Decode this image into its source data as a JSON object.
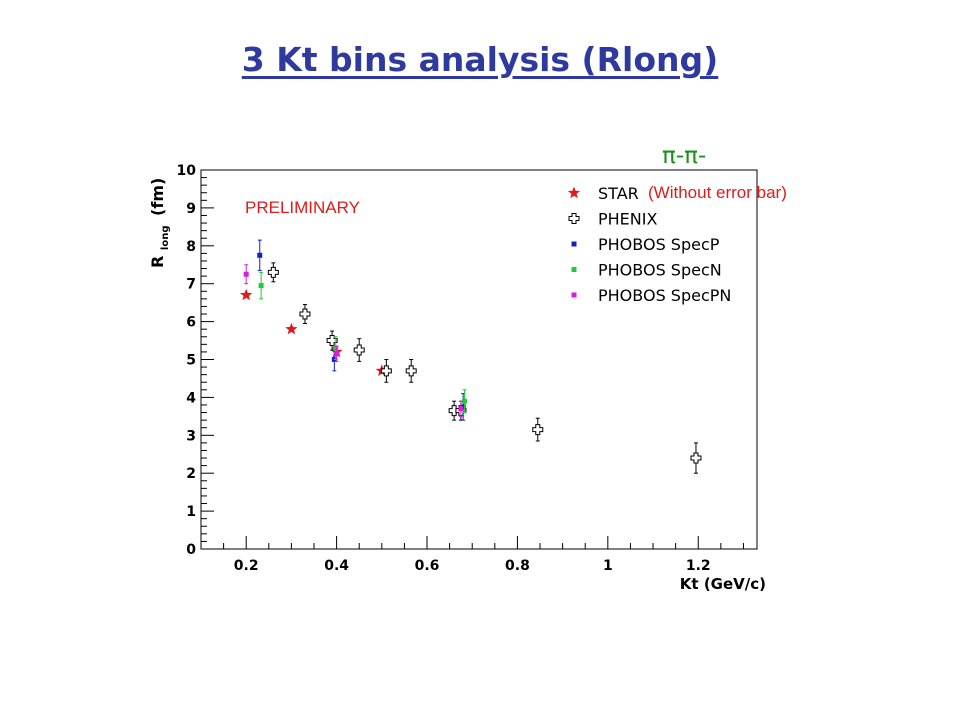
{
  "slide": {
    "title": "3 Kt bins analysis (Rlong)"
  },
  "chart_data": {
    "type": "scatter",
    "xlabel": "Kt (GeV/c)",
    "ylabel_main": "R",
    "ylabel_sub": "long",
    "ylabel_unit": "(fm)",
    "xlim": [
      0.1,
      1.33
    ],
    "ylim": [
      0,
      10
    ],
    "x_ticks": [
      0.2,
      0.4,
      0.6,
      0.8,
      1,
      1.2
    ],
    "x_tick_labels": [
      "0.2",
      "0.4",
      "0.6",
      "0.8",
      "1",
      "1.2"
    ],
    "y_ticks": [
      0,
      1,
      2,
      3,
      4,
      5,
      6,
      7,
      8,
      9,
      10
    ],
    "y_tick_labels": [
      "0",
      "1",
      "2",
      "3",
      "4",
      "5",
      "6",
      "7",
      "8",
      "9",
      "10"
    ],
    "annotations": {
      "preliminary": "PRELIMINARY",
      "particle": "π-π-",
      "note": "(Without error bar)"
    },
    "legend_position": "top-right",
    "series": [
      {
        "name": "STAR",
        "marker": "star",
        "color": "#e01b1b",
        "x": [
          0.2,
          0.3,
          0.4,
          0.5
        ],
        "y": [
          6.7,
          5.8,
          5.2,
          4.7
        ],
        "err": [
          0,
          0,
          0,
          0
        ]
      },
      {
        "name": "PHENIX",
        "marker": "open-cross",
        "color": "#000000",
        "x": [
          0.26,
          0.33,
          0.39,
          0.45,
          0.51,
          0.565,
          0.66,
          0.675,
          0.845,
          1.195
        ],
        "y": [
          7.3,
          6.2,
          5.5,
          5.25,
          4.7,
          4.7,
          3.65,
          3.65,
          3.15,
          2.4
        ],
        "err": [
          0.25,
          0.25,
          0.25,
          0.3,
          0.3,
          0.3,
          0.25,
          0.25,
          0.3,
          0.4
        ]
      },
      {
        "name": "PHOBOS SpecP",
        "marker": "square",
        "color": "#1020c8",
        "x": [
          0.23,
          0.395,
          0.68
        ],
        "y": [
          7.75,
          5.0,
          3.75
        ],
        "err": [
          0.4,
          0.3,
          0.35
        ]
      },
      {
        "name": "PHOBOS SpecN",
        "marker": "square",
        "color": "#22c93a",
        "x": [
          0.233,
          0.398,
          0.683
        ],
        "y": [
          6.95,
          5.3,
          3.9
        ],
        "err": [
          0.35,
          0.3,
          0.3
        ]
      },
      {
        "name": "PHOBOS SpecPN",
        "marker": "square",
        "color": "#d81fd8",
        "x": [
          0.2,
          0.4,
          0.675
        ],
        "y": [
          7.25,
          5.15,
          3.7
        ],
        "err": [
          0.25,
          0.2,
          0.2
        ]
      }
    ]
  }
}
